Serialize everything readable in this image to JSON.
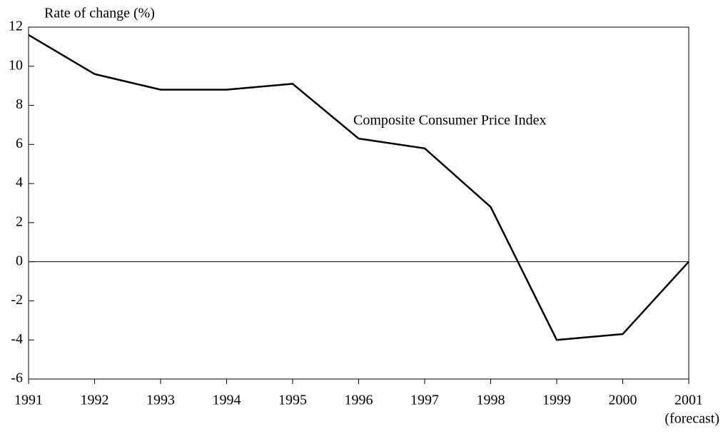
{
  "chart_data": {
    "type": "line",
    "y_axis_label": "Rate of change (%)",
    "annotation": "Composite Consumer Price Index",
    "x_note": "(forecast)",
    "categories": [
      "1991",
      "1992",
      "1993",
      "1994",
      "1995",
      "1996",
      "1997",
      "1998",
      "1999",
      "2000",
      "2001"
    ],
    "series": [
      {
        "color": "#000000",
        "values": [
          11.6,
          9.6,
          8.8,
          8.8,
          9.1,
          6.3,
          5.8,
          2.8,
          -4.0,
          -3.7,
          0.0
        ]
      }
    ],
    "ylim": [
      -6,
      12
    ],
    "yticks": [
      -6,
      -4,
      -2,
      0,
      2,
      4,
      6,
      8,
      10,
      12
    ],
    "grid": false
  }
}
